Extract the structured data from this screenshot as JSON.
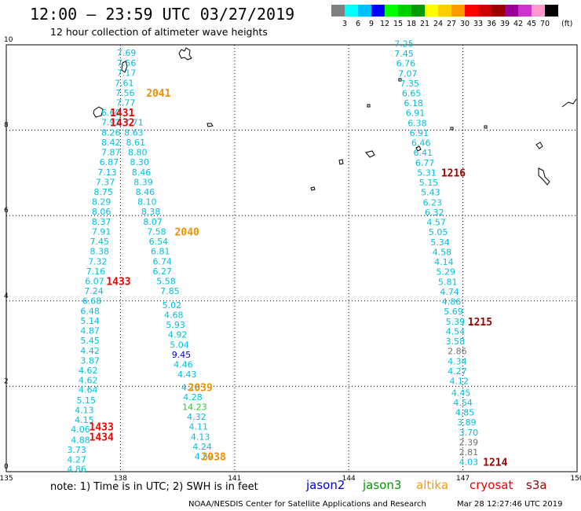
{
  "header": {
    "title": "12:00 – 23:59 UTC 03/27/2019",
    "subtitle": "12 hour collection of altimeter wave heights"
  },
  "color_scale": {
    "unit_label": "(ft)",
    "labels": [
      "3",
      "6",
      "9",
      "12",
      "15",
      "18",
      "21",
      "24",
      "27",
      "30",
      "33",
      "36",
      "39",
      "42",
      "45",
      "70"
    ],
    "colors": [
      "#808080",
      "#00ffff",
      "#00bfff",
      "#0000ff",
      "#00ff00",
      "#00cc00",
      "#009900",
      "#ffff00",
      "#ffcc00",
      "#ff9900",
      "#ff0000",
      "#cc0000",
      "#990000",
      "#990099",
      "#cc33cc",
      "#ff99cc",
      "#000000"
    ]
  },
  "axes": {
    "x_labels": [
      "135",
      "138",
      "141",
      "144",
      "147",
      "150"
    ],
    "y_labels": [
      "10",
      "8",
      "6",
      "4",
      "2",
      "0"
    ]
  },
  "chart_data": {
    "type": "track_map",
    "x_range": [
      135,
      150
    ],
    "y_range": [
      0,
      10
    ],
    "colors": {
      "cyan": "#00bfdf",
      "dark_blue": "#0000cc",
      "green": "#22cc22",
      "gray": "#707070",
      "orange": "#f09000",
      "red": "#ee0000",
      "dark_red": "#990000"
    },
    "tracks": [
      {
        "points": [
          {
            "x": 138.16,
            "y": 9.82,
            "v": "7.69",
            "c": "cyan"
          },
          {
            "x": 138.16,
            "y": 9.58,
            "v": "7.56",
            "c": "cyan"
          },
          {
            "x": 138.16,
            "y": 9.35,
            "v": "7.17",
            "c": "cyan"
          },
          {
            "x": 138.1,
            "y": 9.11,
            "v": "7.61",
            "c": "cyan"
          },
          {
            "x": 138.12,
            "y": 8.88,
            "v": "7.56",
            "c": "cyan"
          },
          {
            "x": 138.14,
            "y": 8.65,
            "v": "7.77",
            "c": "cyan"
          },
          {
            "x": 137.75,
            "y": 8.42,
            "v": "6.60",
            "c": "cyan"
          },
          {
            "x": 137.75,
            "y": 8.19,
            "v": "7.92",
            "c": "cyan"
          },
          {
            "x": 137.75,
            "y": 7.95,
            "v": "8.26",
            "c": "cyan"
          },
          {
            "x": 137.75,
            "y": 7.72,
            "v": "8.42",
            "c": "cyan"
          },
          {
            "x": 137.75,
            "y": 7.49,
            "v": "7.87",
            "c": "cyan"
          },
          {
            "x": 137.7,
            "y": 7.26,
            "v": "6.87",
            "c": "cyan"
          },
          {
            "x": 137.65,
            "y": 7.02,
            "v": "7.13",
            "c": "cyan"
          },
          {
            "x": 137.6,
            "y": 6.79,
            "v": "7.37",
            "c": "cyan"
          },
          {
            "x": 137.55,
            "y": 6.56,
            "v": "8.75",
            "c": "cyan"
          },
          {
            "x": 137.5,
            "y": 6.33,
            "v": "8.29",
            "c": "cyan"
          },
          {
            "x": 137.5,
            "y": 6.1,
            "v": "8.06",
            "c": "cyan"
          },
          {
            "x": 137.5,
            "y": 5.86,
            "v": "8.37",
            "c": "cyan"
          },
          {
            "x": 137.5,
            "y": 5.63,
            "v": "7.91",
            "c": "cyan"
          },
          {
            "x": 137.45,
            "y": 5.4,
            "v": "7.45",
            "c": "cyan"
          },
          {
            "x": 137.45,
            "y": 5.17,
            "v": "8.38",
            "c": "cyan"
          },
          {
            "x": 137.4,
            "y": 4.93,
            "v": "7.32",
            "c": "cyan"
          },
          {
            "x": 137.35,
            "y": 4.7,
            "v": "7.16",
            "c": "cyan"
          },
          {
            "x": 137.32,
            "y": 4.47,
            "v": "6.07",
            "c": "cyan"
          },
          {
            "x": 137.3,
            "y": 4.24,
            "v": "7.24",
            "c": "cyan"
          },
          {
            "x": 137.25,
            "y": 4.01,
            "v": "6.68",
            "c": "cyan"
          },
          {
            "x": 137.2,
            "y": 3.77,
            "v": "6.48",
            "c": "cyan"
          },
          {
            "x": 137.2,
            "y": 3.54,
            "v": "5.14",
            "c": "cyan"
          },
          {
            "x": 137.2,
            "y": 3.31,
            "v": "4.87",
            "c": "cyan"
          },
          {
            "x": 137.2,
            "y": 3.08,
            "v": "5.45",
            "c": "cyan"
          },
          {
            "x": 137.2,
            "y": 2.84,
            "v": "4.42",
            "c": "cyan"
          },
          {
            "x": 137.2,
            "y": 2.61,
            "v": "3.87",
            "c": "cyan"
          },
          {
            "x": 137.15,
            "y": 2.38,
            "v": "4.62",
            "c": "cyan"
          },
          {
            "x": 137.15,
            "y": 2.15,
            "v": "4.62",
            "c": "cyan"
          },
          {
            "x": 137.15,
            "y": 1.92,
            "v": "4.64",
            "c": "cyan"
          },
          {
            "x": 137.1,
            "y": 1.68,
            "v": "5.15",
            "c": "cyan"
          },
          {
            "x": 137.05,
            "y": 1.45,
            "v": "4.13",
            "c": "cyan"
          },
          {
            "x": 137.05,
            "y": 1.22,
            "v": "4.15",
            "c": "cyan"
          },
          {
            "x": 136.95,
            "y": 0.99,
            "v": "4.06",
            "c": "cyan"
          },
          {
            "x": 136.95,
            "y": 0.75,
            "v": "4.88",
            "c": "cyan"
          },
          {
            "x": 136.85,
            "y": 0.52,
            "v": "3.73",
            "c": "cyan"
          },
          {
            "x": 136.85,
            "y": 0.29,
            "v": "4.27",
            "c": "cyan"
          },
          {
            "x": 136.85,
            "y": 0.06,
            "v": "4.86",
            "c": "cyan"
          }
        ]
      },
      {
        "points": [
          {
            "x": 138.35,
            "y": 8.19,
            "v": "7.71",
            "c": "cyan"
          },
          {
            "x": 138.35,
            "y": 7.95,
            "v": "8.63",
            "c": "cyan"
          },
          {
            "x": 138.4,
            "y": 7.72,
            "v": "8.61",
            "c": "cyan"
          },
          {
            "x": 138.45,
            "y": 7.49,
            "v": "8.80",
            "c": "cyan"
          },
          {
            "x": 138.5,
            "y": 7.26,
            "v": "8.30",
            "c": "cyan"
          },
          {
            "x": 138.55,
            "y": 7.02,
            "v": "8.46",
            "c": "cyan"
          },
          {
            "x": 138.6,
            "y": 6.79,
            "v": "8.39",
            "c": "cyan"
          },
          {
            "x": 138.65,
            "y": 6.56,
            "v": "8.46",
            "c": "cyan"
          },
          {
            "x": 138.7,
            "y": 6.33,
            "v": "8.10",
            "c": "cyan"
          },
          {
            "x": 138.8,
            "y": 6.1,
            "v": "8.38",
            "c": "cyan"
          },
          {
            "x": 138.85,
            "y": 5.86,
            "v": "8.07",
            "c": "cyan"
          },
          {
            "x": 138.95,
            "y": 5.63,
            "v": "7.58",
            "c": "cyan"
          },
          {
            "x": 139.0,
            "y": 5.4,
            "v": "6.54",
            "c": "cyan"
          },
          {
            "x": 139.05,
            "y": 5.17,
            "v": "6.81",
            "c": "cyan"
          },
          {
            "x": 139.1,
            "y": 4.93,
            "v": "6.74",
            "c": "cyan"
          },
          {
            "x": 139.1,
            "y": 4.7,
            "v": "6.27",
            "c": "cyan"
          },
          {
            "x": 139.2,
            "y": 4.47,
            "v": "5.58",
            "c": "cyan"
          },
          {
            "x": 139.3,
            "y": 4.24,
            "v": "7.85",
            "c": "cyan"
          },
          {
            "x": 139.35,
            "y": 3.9,
            "v": "5.02",
            "c": "cyan"
          },
          {
            "x": 139.4,
            "y": 3.67,
            "v": "4.68",
            "c": "cyan"
          },
          {
            "x": 139.45,
            "y": 3.44,
            "v": "5.93",
            "c": "cyan"
          },
          {
            "x": 139.5,
            "y": 3.21,
            "v": "4.92",
            "c": "cyan"
          },
          {
            "x": 139.55,
            "y": 2.97,
            "v": "5.04",
            "c": "cyan"
          },
          {
            "x": 139.6,
            "y": 2.74,
            "v": "9.45",
            "c": "dark_blue"
          },
          {
            "x": 139.65,
            "y": 2.51,
            "v": "4.46",
            "c": "cyan"
          },
          {
            "x": 139.75,
            "y": 2.28,
            "v": "4.43",
            "c": "cyan"
          },
          {
            "x": 139.85,
            "y": 1.98,
            "v": "4.18",
            "c": "cyan"
          },
          {
            "x": 139.9,
            "y": 1.75,
            "v": "4.28",
            "c": "cyan"
          },
          {
            "x": 139.95,
            "y": 1.52,
            "v": "14.23",
            "c": "green"
          },
          {
            "x": 140.0,
            "y": 1.29,
            "v": "4.32",
            "c": "cyan"
          },
          {
            "x": 140.05,
            "y": 1.06,
            "v": "4.11",
            "c": "cyan"
          },
          {
            "x": 140.1,
            "y": 0.82,
            "v": "4.13",
            "c": "cyan"
          },
          {
            "x": 140.15,
            "y": 0.59,
            "v": "4.24",
            "c": "cyan"
          },
          {
            "x": 140.2,
            "y": 0.36,
            "v": "4.52",
            "c": "cyan"
          }
        ]
      },
      {
        "points": [
          {
            "x": 145.45,
            "y": 10.03,
            "v": "7.25",
            "c": "cyan"
          },
          {
            "x": 145.45,
            "y": 9.8,
            "v": "7.45",
            "c": "cyan"
          },
          {
            "x": 145.5,
            "y": 9.57,
            "v": "6.76",
            "c": "cyan"
          },
          {
            "x": 145.55,
            "y": 9.33,
            "v": "7.07",
            "c": "cyan"
          },
          {
            "x": 145.6,
            "y": 9.1,
            "v": "7.35",
            "c": "cyan"
          },
          {
            "x": 145.65,
            "y": 8.87,
            "v": "6.65",
            "c": "cyan"
          },
          {
            "x": 145.7,
            "y": 8.64,
            "v": "6.18",
            "c": "cyan"
          },
          {
            "x": 145.75,
            "y": 8.41,
            "v": "6.91",
            "c": "cyan"
          },
          {
            "x": 145.8,
            "y": 8.17,
            "v": "6.38",
            "c": "cyan"
          },
          {
            "x": 145.85,
            "y": 7.94,
            "v": "6.91",
            "c": "cyan"
          },
          {
            "x": 145.9,
            "y": 7.71,
            "v": "6.46",
            "c": "cyan"
          },
          {
            "x": 145.95,
            "y": 7.48,
            "v": "6.41",
            "c": "cyan"
          },
          {
            "x": 146.0,
            "y": 7.24,
            "v": "6.77",
            "c": "cyan"
          },
          {
            "x": 146.05,
            "y": 7.01,
            "v": "5.31",
            "c": "cyan"
          },
          {
            "x": 146.1,
            "y": 6.78,
            "v": "5.15",
            "c": "cyan"
          },
          {
            "x": 146.15,
            "y": 6.55,
            "v": "5.43",
            "c": "cyan"
          },
          {
            "x": 146.2,
            "y": 6.31,
            "v": "6.23",
            "c": "cyan"
          },
          {
            "x": 146.25,
            "y": 6.08,
            "v": "6.32",
            "c": "cyan"
          },
          {
            "x": 146.3,
            "y": 5.85,
            "v": "4.57",
            "c": "cyan"
          },
          {
            "x": 146.35,
            "y": 5.62,
            "v": "5.05",
            "c": "cyan"
          },
          {
            "x": 146.4,
            "y": 5.38,
            "v": "5.34",
            "c": "cyan"
          },
          {
            "x": 146.45,
            "y": 5.15,
            "v": "4.58",
            "c": "cyan"
          },
          {
            "x": 146.5,
            "y": 4.92,
            "v": "4.14",
            "c": "cyan"
          },
          {
            "x": 146.55,
            "y": 4.69,
            "v": "5.29",
            "c": "cyan"
          },
          {
            "x": 146.6,
            "y": 4.45,
            "v": "5.81",
            "c": "cyan"
          },
          {
            "x": 146.65,
            "y": 4.22,
            "v": "4.74",
            "c": "cyan"
          },
          {
            "x": 146.7,
            "y": 3.99,
            "v": "4.86",
            "c": "cyan"
          },
          {
            "x": 146.75,
            "y": 3.76,
            "v": "5.69",
            "c": "cyan"
          },
          {
            "x": 146.8,
            "y": 3.52,
            "v": "5.39",
            "c": "cyan"
          },
          {
            "x": 146.8,
            "y": 3.29,
            "v": "4.54",
            "c": "cyan"
          },
          {
            "x": 146.8,
            "y": 3.06,
            "v": "3.58",
            "c": "cyan"
          },
          {
            "x": 146.85,
            "y": 2.83,
            "v": "2.86",
            "c": "gray"
          },
          {
            "x": 146.85,
            "y": 2.59,
            "v": "4.34",
            "c": "cyan"
          },
          {
            "x": 146.85,
            "y": 2.36,
            "v": "4.27",
            "c": "cyan"
          },
          {
            "x": 146.9,
            "y": 2.13,
            "v": "4.12",
            "c": "cyan"
          },
          {
            "x": 146.95,
            "y": 1.85,
            "v": "4.45",
            "c": "cyan"
          },
          {
            "x": 147.0,
            "y": 1.62,
            "v": "4.54",
            "c": "cyan"
          },
          {
            "x": 147.05,
            "y": 1.39,
            "v": "4.85",
            "c": "cyan"
          },
          {
            "x": 147.1,
            "y": 1.16,
            "v": "3.89",
            "c": "cyan"
          },
          {
            "x": 147.15,
            "y": 0.92,
            "v": "3.70",
            "c": "cyan"
          },
          {
            "x": 147.15,
            "y": 0.69,
            "v": "2.39",
            "c": "gray"
          },
          {
            "x": 147.15,
            "y": 0.46,
            "v": "2.81",
            "c": "gray"
          },
          {
            "x": 147.15,
            "y": 0.23,
            "v": "4.03",
            "c": "cyan"
          }
        ]
      }
    ],
    "pass_labels": [
      {
        "x": 139.0,
        "y": 8.88,
        "v": "2041",
        "c": "orange"
      },
      {
        "x": 138.05,
        "y": 8.42,
        "v": "1431",
        "c": "red"
      },
      {
        "x": 138.05,
        "y": 8.19,
        "v": "1432",
        "c": "red"
      },
      {
        "x": 139.75,
        "y": 5.63,
        "v": "2040",
        "c": "orange"
      },
      {
        "x": 137.95,
        "y": 4.47,
        "v": "1433",
        "c": "red"
      },
      {
        "x": 140.1,
        "y": 1.98,
        "v": "2039",
        "c": "orange"
      },
      {
        "x": 137.5,
        "y": 1.06,
        "v": "1433",
        "c": "red"
      },
      {
        "x": 137.5,
        "y": 0.82,
        "v": "1434",
        "c": "red"
      },
      {
        "x": 140.45,
        "y": 0.36,
        "v": "2038",
        "c": "orange"
      },
      {
        "x": 146.75,
        "y": 7.01,
        "v": "1216",
        "c": "dark_red"
      },
      {
        "x": 147.45,
        "y": 3.52,
        "v": "1215",
        "c": "dark_red"
      },
      {
        "x": 147.85,
        "y": 0.23,
        "v": "1214",
        "c": "dark_red"
      }
    ]
  },
  "footer": {
    "note": "note:  1) Time is in UTC;  2) SWH is in feet",
    "legend": [
      {
        "label": "jason2",
        "color": "#0000dd"
      },
      {
        "label": "jason3",
        "color": "#009900"
      },
      {
        "label": "altika",
        "color": "#ff9900"
      },
      {
        "label": "cryosat",
        "color": "#ee0000"
      },
      {
        "label": "s3a",
        "color": "#990000"
      }
    ],
    "credit": "NOAA/NESDIS Center for Satellite Applications and Research",
    "timestamp": "Mar 28 12:27:46 UTC 2019"
  }
}
